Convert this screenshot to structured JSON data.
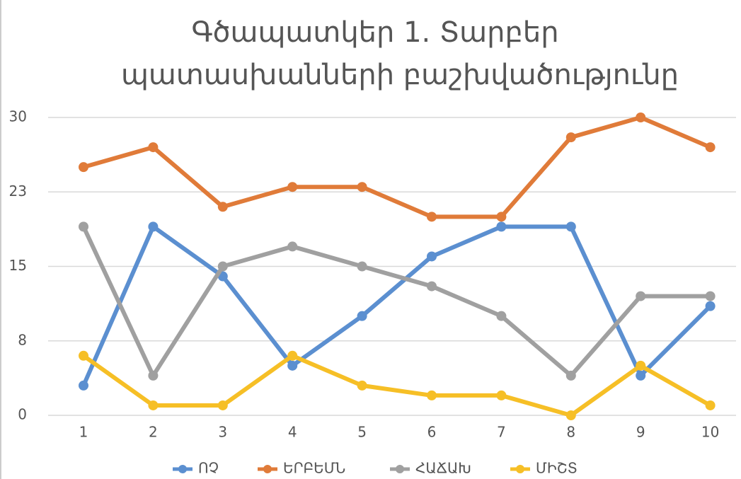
{
  "chart_data": {
    "type": "line",
    "title": [
      "Գծապատկեր 1. Տարբեր",
      "պատասխանների բաշխվածությունը"
    ],
    "categories": [
      "1",
      "2",
      "3",
      "4",
      "5",
      "6",
      "7",
      "8",
      "9",
      "10"
    ],
    "series": [
      {
        "name": "ՈՉ",
        "color": "#5b8fd0",
        "values": [
          3,
          19,
          14,
          5,
          10,
          16,
          19,
          19,
          4,
          11
        ]
      },
      {
        "name": "ԵՐԲԵՄՆ",
        "color": "#e07b39",
        "values": [
          25,
          27,
          21,
          23,
          23,
          20,
          20,
          28,
          30,
          27
        ]
      },
      {
        "name": "ՀԱՃԱԽ",
        "color": "#a0a0a0",
        "values": [
          19,
          4,
          15,
          17,
          15,
          13,
          10,
          4,
          12,
          12
        ]
      },
      {
        "name": "ՄԻՇՏ",
        "color": "#f6bf26",
        "values": [
          6,
          1,
          1,
          6,
          3,
          2,
          2,
          0,
          5,
          1
        ]
      }
    ],
    "ylim": [
      0,
      30
    ],
    "yticks": [
      0,
      {
        "value": 7.5,
        "label": "8"
      },
      15,
      {
        "value": 22.5,
        "label": "23"
      },
      30
    ],
    "grid": true,
    "legend": "bottom"
  }
}
